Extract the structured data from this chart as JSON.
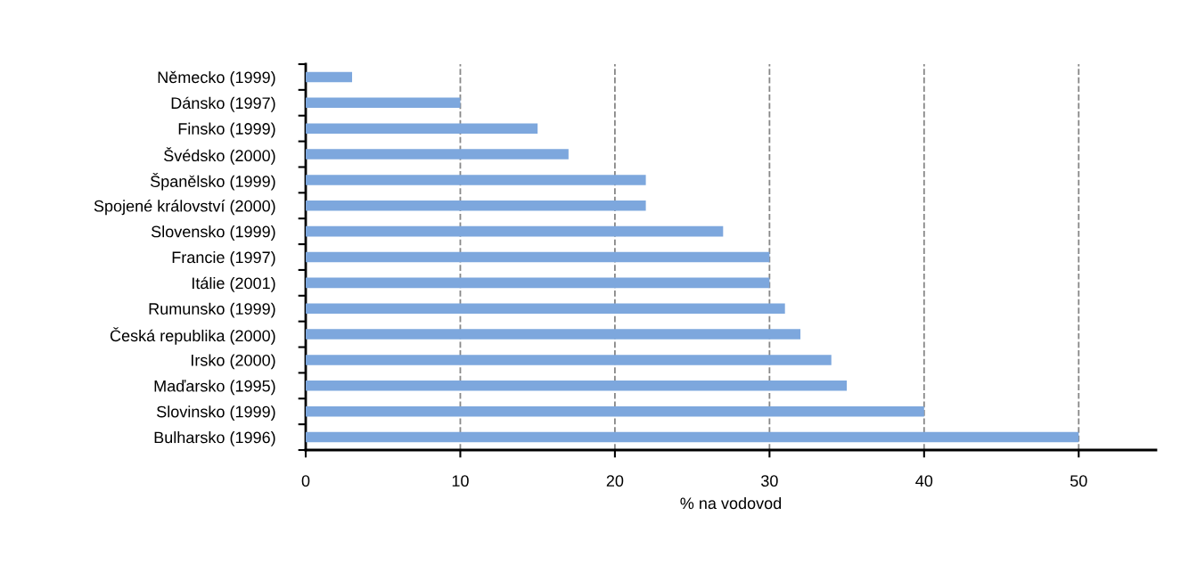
{
  "chart_data": {
    "type": "bar",
    "orientation": "horizontal",
    "xlabel": "% na vodovod",
    "categories": [
      "Německo (1999)",
      "Dánsko (1997)",
      "Finsko (1999)",
      "Švédsko (2000)",
      "Španělsko (1999)",
      "Spojené království (2000)",
      "Slovensko (1999)",
      "Francie (1997)",
      "Itálie (2001)",
      "Rumunsko (1999)",
      "Česká republika (2000)",
      "Irsko (2000)",
      "Maďarsko (1995)",
      "Slovinsko (1999)",
      "Bulharsko (1996)"
    ],
    "values": [
      3,
      10,
      15,
      17,
      22,
      22,
      27,
      30,
      30,
      31,
      32,
      34,
      35,
      40,
      50
    ],
    "color": "#7da7dd",
    "xlim": [
      0,
      55
    ],
    "xticks": [
      0,
      10,
      20,
      30,
      40,
      50
    ],
    "grid": "x",
    "line_style": "dashed"
  }
}
